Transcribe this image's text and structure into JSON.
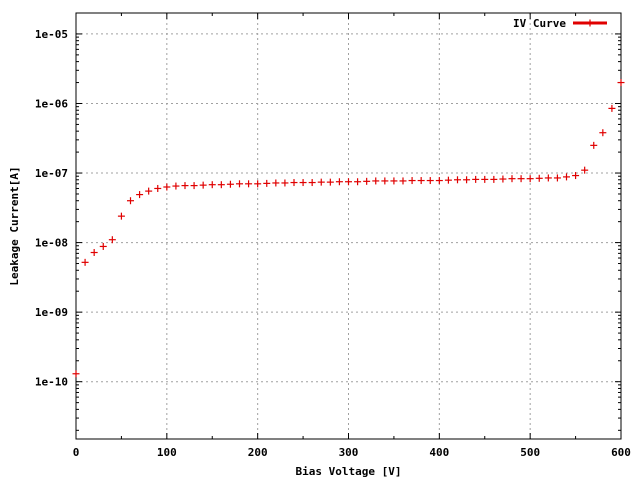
{
  "chart_data": {
    "type": "scatter",
    "xlabel": "Bias Voltage [V]",
    "ylabel": "Leakage Current[A]",
    "xlim": [
      0,
      600
    ],
    "ylim": [
      1.5e-11,
      2e-05
    ],
    "yscale": "log",
    "grid": true,
    "legend_position": "top-right",
    "x_ticks": [
      0,
      100,
      200,
      300,
      400,
      500,
      600
    ],
    "x_tick_labels": [
      "0",
      "100",
      "200",
      "300",
      "400",
      "500",
      "600"
    ],
    "y_ticks": [
      1e-10,
      1e-09,
      1e-08,
      1e-07,
      1e-06,
      1e-05
    ],
    "y_tick_labels": [
      "1e-10",
      "1e-09",
      "1e-08",
      "1e-07",
      "1e-06",
      "1e-05"
    ],
    "series": [
      {
        "name": "IV Curve",
        "color": "#e00000",
        "marker": "plus",
        "x": [
          0,
          10,
          20,
          30,
          40,
          50,
          60,
          70,
          80,
          90,
          100,
          110,
          120,
          130,
          140,
          150,
          160,
          170,
          180,
          190,
          200,
          210,
          220,
          230,
          240,
          250,
          260,
          270,
          280,
          290,
          300,
          310,
          320,
          330,
          340,
          350,
          360,
          370,
          380,
          390,
          400,
          410,
          420,
          430,
          440,
          450,
          460,
          470,
          480,
          490,
          500,
          510,
          520,
          530,
          540,
          550,
          560,
          570,
          580,
          590,
          600
        ],
        "y": [
          1.3e-10,
          5.2e-09,
          7.2e-09,
          8.8e-09,
          1.1e-08,
          2.4e-08,
          4e-08,
          4.9e-08,
          5.5e-08,
          6e-08,
          6.3e-08,
          6.5e-08,
          6.6e-08,
          6.6e-08,
          6.7e-08,
          6.8e-08,
          6.8e-08,
          6.9e-08,
          7e-08,
          7e-08,
          7e-08,
          7.1e-08,
          7.2e-08,
          7.2e-08,
          7.3e-08,
          7.3e-08,
          7.3e-08,
          7.4e-08,
          7.4e-08,
          7.5e-08,
          7.5e-08,
          7.5e-08,
          7.6e-08,
          7.7e-08,
          7.7e-08,
          7.7e-08,
          7.7e-08,
          7.8e-08,
          7.8e-08,
          7.8e-08,
          7.8e-08,
          7.9e-08,
          8e-08,
          8e-08,
          8.1e-08,
          8.1e-08,
          8.1e-08,
          8.2e-08,
          8.3e-08,
          8.3e-08,
          8.3e-08,
          8.4e-08,
          8.5e-08,
          8.5e-08,
          8.8e-08,
          9.2e-08,
          1.1e-07,
          2.5e-07,
          3.8e-07,
          8.5e-07,
          2e-06
        ]
      }
    ]
  }
}
